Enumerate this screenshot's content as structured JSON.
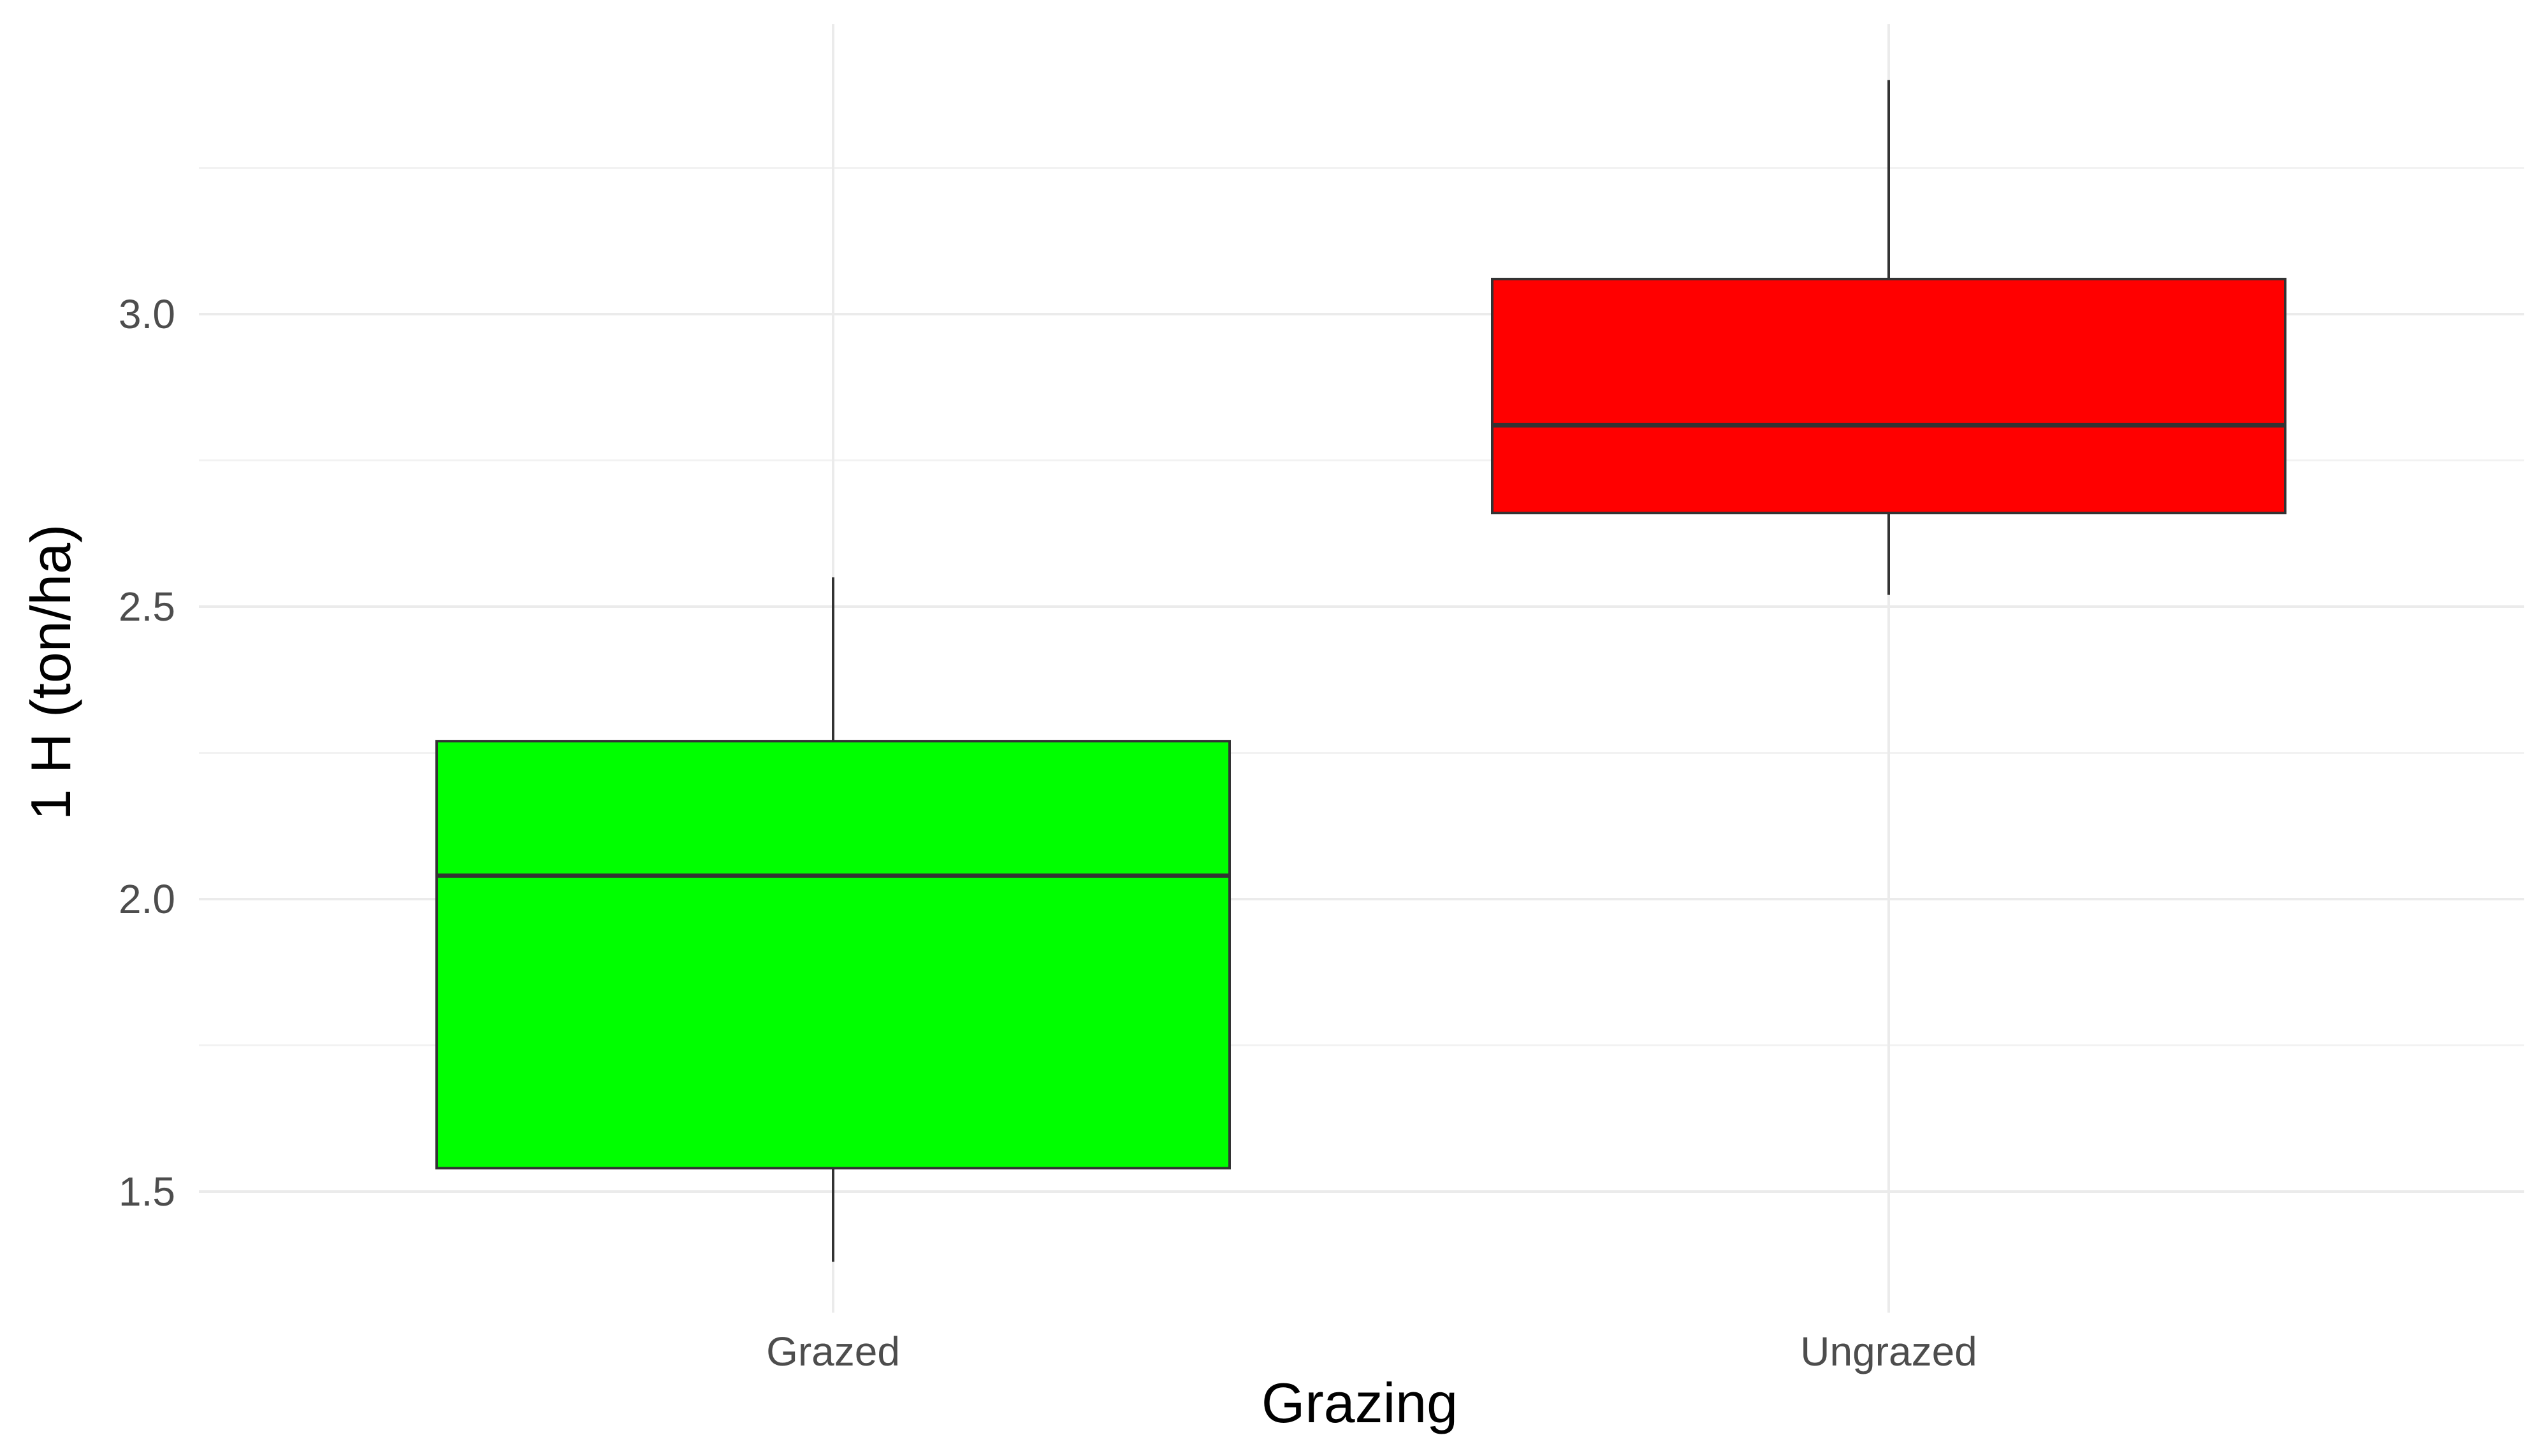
{
  "chart_data": {
    "type": "boxplot",
    "title": "",
    "xlabel": "Grazing",
    "ylabel": "1 H (ton/ha)",
    "ylim": [
      1.25,
      3.45
    ],
    "yticks": [
      1.5,
      2.0,
      2.5,
      3.0
    ],
    "ytick_labels": [
      "1.5",
      "2.0",
      "2.5",
      "3.0"
    ],
    "grid": true,
    "legend": "none",
    "categories": [
      "Grazed",
      "Ungrazed"
    ],
    "boxes": [
      {
        "category": "Grazed",
        "whisker_low": 1.38,
        "q1": 1.54,
        "median": 2.04,
        "q3": 2.27,
        "whisker_high": 2.55,
        "color": "#00ff00"
      },
      {
        "category": "Ungrazed",
        "whisker_low": 2.52,
        "q1": 2.66,
        "median": 2.81,
        "q3": 3.06,
        "whisker_high": 3.4,
        "color": "#ff0000"
      }
    ]
  }
}
